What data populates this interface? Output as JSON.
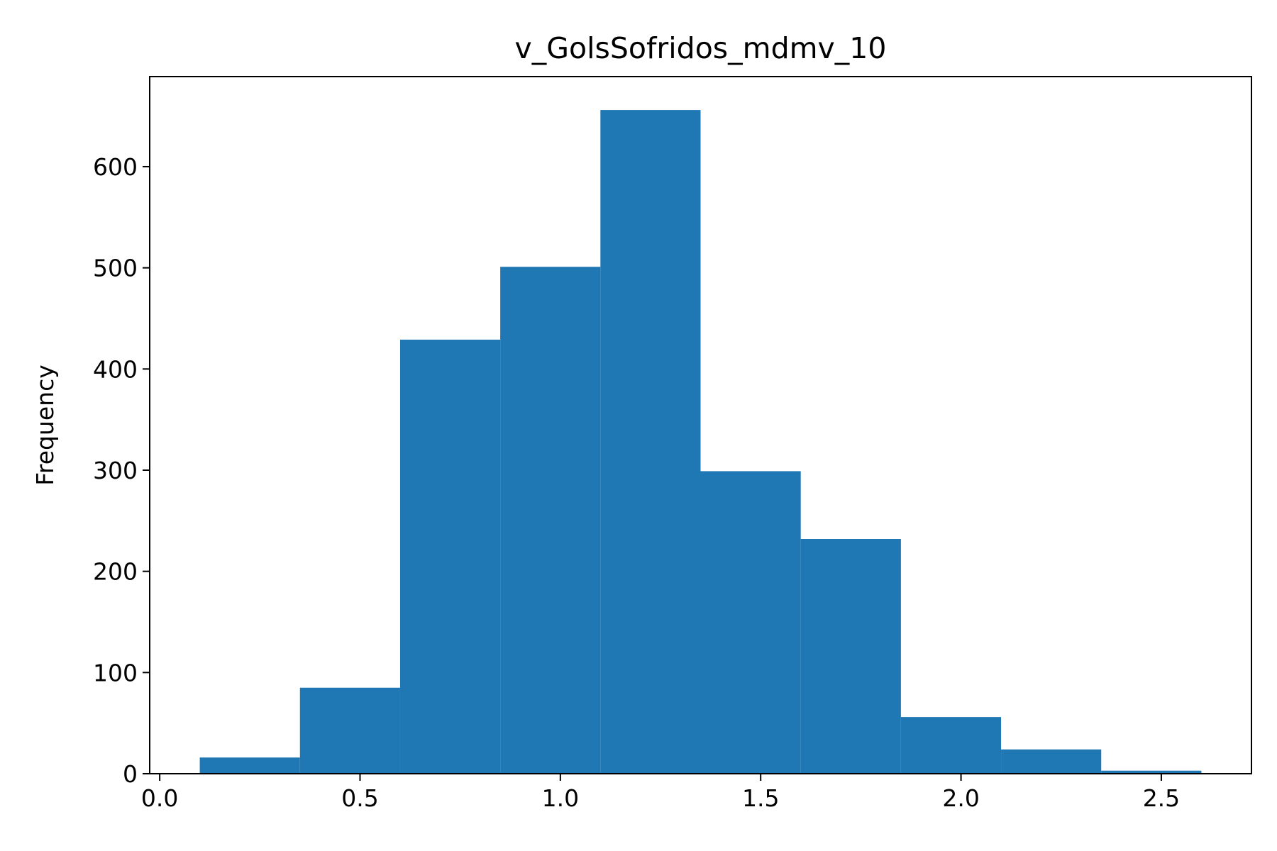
{
  "chart_data": {
    "type": "bar",
    "title": "v_GolsSofridos_mdmv_10",
    "xlabel": "",
    "ylabel": "Frequency",
    "bin_edges": [
      0.1,
      0.35,
      0.6,
      0.85,
      1.1,
      1.35,
      1.6,
      1.85,
      2.1,
      2.35,
      2.6
    ],
    "values": [
      16,
      85,
      429,
      501,
      656,
      299,
      232,
      56,
      24,
      3
    ],
    "xlim": [
      -0.025,
      2.725
    ],
    "ylim": [
      0,
      689
    ],
    "x_ticks": [
      0.0,
      0.5,
      1.0,
      1.5,
      2.0,
      2.5
    ],
    "x_tick_labels": [
      "0.0",
      "0.5",
      "1.0",
      "1.5",
      "2.0",
      "2.5"
    ],
    "y_ticks": [
      0,
      100,
      200,
      300,
      400,
      500,
      600
    ],
    "y_tick_labels": [
      "0",
      "100",
      "200",
      "300",
      "400",
      "500",
      "600"
    ],
    "bar_color": "#1f77b4",
    "grid": false,
    "legend": "none"
  }
}
